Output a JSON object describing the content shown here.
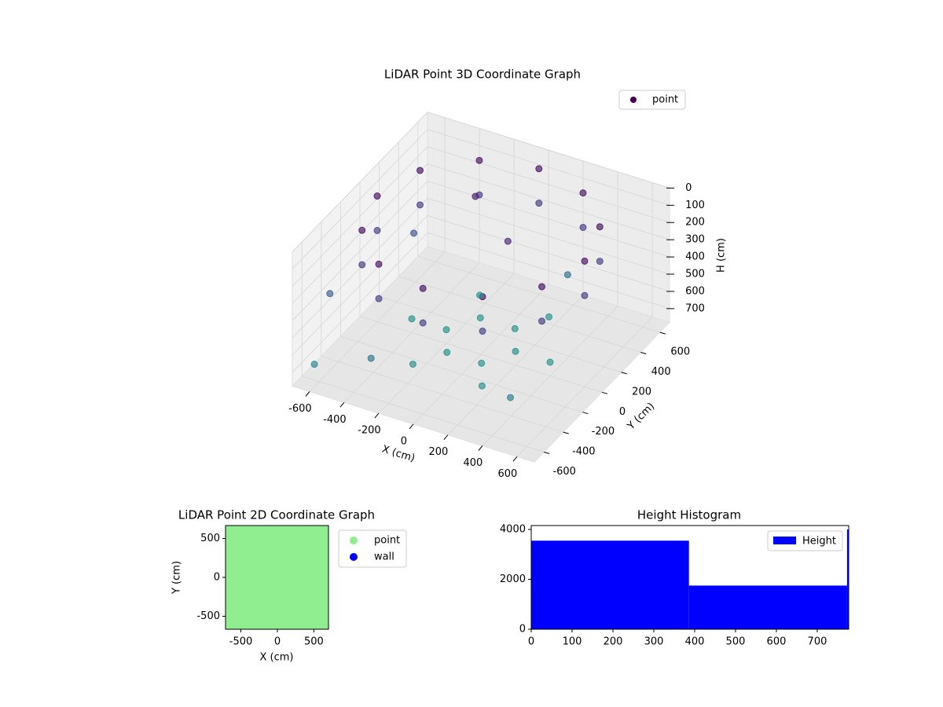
{
  "chart_data": [
    {
      "type": "scatter3d",
      "title": "LiDAR Point 3D Coordinate Graph",
      "xlabel": "X (cm)",
      "ylabel": "Y (cm)",
      "zlabel": "H (cm)",
      "xlim": [
        -700,
        700
      ],
      "ylim": [
        -700,
        700
      ],
      "zlim": [
        0,
        780
      ],
      "z_inverted": true,
      "xticks": [
        -600,
        -400,
        -200,
        0,
        200,
        400,
        600
      ],
      "yticks": [
        -600,
        -400,
        -200,
        0,
        200,
        400,
        600
      ],
      "zticks": [
        0,
        100,
        200,
        300,
        400,
        500,
        600,
        700
      ],
      "colormap": "viridis",
      "clim": [
        0,
        1400
      ],
      "legend": "upper right",
      "series": [
        {
          "name": "point",
          "color": "#440154",
          "x": [
            600,
            520,
            300,
            0,
            -300,
            -520,
            -600,
            -520,
            -300,
            0,
            300,
            520,
            600,
            520,
            300,
            0,
            -300,
            -520,
            -600,
            -520,
            -300,
            0,
            300,
            520,
            200,
            100,
            -100,
            -200,
            -100,
            100,
            400,
            200,
            -200,
            -400,
            -200,
            200,
            -650,
            -500,
            -300,
            100,
            -200,
            450,
            -600,
            250
          ],
          "y": [
            0,
            300,
            520,
            600,
            520,
            300,
            0,
            -300,
            -520,
            -600,
            -520,
            -300,
            0,
            300,
            520,
            600,
            520,
            300,
            0,
            -300,
            -520,
            -600,
            -520,
            -300,
            0,
            173,
            173,
            0,
            -173,
            -173,
            0,
            346,
            346,
            0,
            -346,
            -346,
            -400,
            200,
            -600,
            100,
            300,
            -500,
            -650,
            450
          ],
          "z": [
            50,
            50,
            50,
            50,
            50,
            50,
            50,
            50,
            50,
            50,
            50,
            50,
            250,
            250,
            250,
            250,
            250,
            250,
            250,
            250,
            250,
            250,
            250,
            250,
            700,
            700,
            700,
            700,
            700,
            700,
            700,
            700,
            700,
            700,
            700,
            700,
            400,
            350,
            550,
            150,
            100,
            600,
            650,
            500
          ]
        }
      ]
    },
    {
      "type": "scatter",
      "title": "LiDAR Point 2D Coordinate Graph",
      "xlabel": "X (cm)",
      "ylabel": "Y (cm)",
      "xlim": [
        -710,
        700
      ],
      "ylim": [
        -667,
        667
      ],
      "xticks": [
        -500,
        0,
        500
      ],
      "yticks": [
        -500,
        0,
        500
      ],
      "legend": "outside right",
      "series": [
        {
          "name": "point",
          "color": "#90ee90",
          "x": [
            -600,
            -400,
            -200,
            0,
            200,
            400,
            600,
            -600,
            -400,
            -200,
            0,
            200,
            400,
            600,
            -600,
            -400,
            -200,
            0,
            200,
            400,
            600,
            -600,
            -400,
            -200,
            0,
            200,
            400,
            600,
            -600,
            -400,
            -200,
            0,
            200,
            400,
            600,
            -600,
            -400,
            -200,
            0,
            200,
            400,
            600,
            -600,
            -400,
            -200,
            0,
            200,
            400,
            600
          ],
          "y": [
            -600,
            -600,
            -600,
            -600,
            -600,
            -600,
            -600,
            -400,
            -400,
            -400,
            -400,
            -400,
            -400,
            -400,
            -200,
            -200,
            -200,
            -200,
            -200,
            -200,
            -200,
            0,
            0,
            0,
            0,
            0,
            0,
            0,
            200,
            200,
            200,
            200,
            200,
            200,
            200,
            400,
            400,
            400,
            400,
            400,
            400,
            400,
            600,
            600,
            600,
            600,
            600,
            600,
            600
          ]
        },
        {
          "name": "wall",
          "color": "#0000ff",
          "x": [],
          "y": []
        }
      ]
    },
    {
      "type": "hist",
      "title": "Height Histogram",
      "bins": [
        0,
        386,
        773,
        777
      ],
      "counts": [
        3550,
        1750,
        4000
      ],
      "color": "#0000ff",
      "xlim": [
        0,
        777
      ],
      "ylim": [
        0,
        4157
      ],
      "xticks": [
        0,
        100,
        200,
        300,
        400,
        500,
        600,
        700
      ],
      "yticks": [
        0,
        2000,
        4000
      ],
      "legend": "upper right",
      "series_name": "Height"
    }
  ]
}
